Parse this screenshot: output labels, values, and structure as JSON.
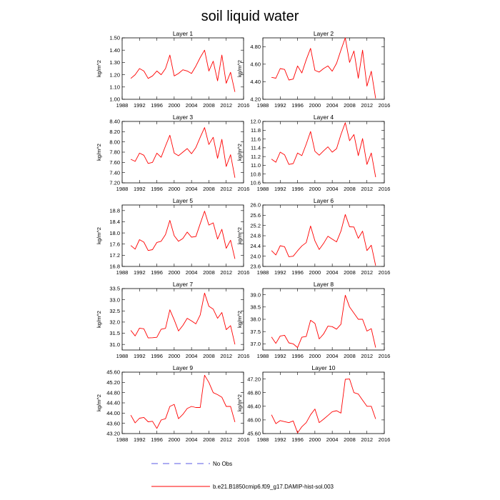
{
  "title": "soil liquid water",
  "chart_data": {
    "type": "line",
    "xlim": [
      1988,
      2016
    ],
    "xticks": [
      1988,
      1992,
      1996,
      2000,
      2004,
      2008,
      2012,
      2016
    ],
    "x": [
      1990,
      1991,
      1992,
      1993,
      1994,
      1995,
      1996,
      1997,
      1998,
      1999,
      2000,
      2001,
      2002,
      2003,
      2004,
      2005,
      2006,
      2007,
      2008,
      2009,
      2010,
      2011,
      2012,
      2013,
      2014
    ],
    "ylabel": "kg/m^2",
    "series_color": "#ff0000",
    "panels": [
      {
        "title": "Layer 1",
        "ylim": [
          1.0,
          1.5
        ],
        "yticks": [
          "1.00",
          "1.10",
          "1.20",
          "1.30",
          "1.40",
          "1.50"
        ],
        "values": [
          1.17,
          1.2,
          1.25,
          1.23,
          1.17,
          1.19,
          1.23,
          1.2,
          1.25,
          1.36,
          1.19,
          1.21,
          1.24,
          1.23,
          1.21,
          1.27,
          1.34,
          1.4,
          1.23,
          1.31,
          1.15,
          1.36,
          1.13,
          1.22,
          1.06
        ]
      },
      {
        "title": "Layer 2",
        "ylim": [
          4.2,
          4.9
        ],
        "yticks": [
          "4.20",
          "4.40",
          "4.60",
          "4.80"
        ],
        "values": [
          4.45,
          4.44,
          4.55,
          4.54,
          4.42,
          4.43,
          4.58,
          4.5,
          4.65,
          4.78,
          4.53,
          4.51,
          4.55,
          4.58,
          4.52,
          4.61,
          4.76,
          4.9,
          4.62,
          4.75,
          4.44,
          4.76,
          4.35,
          4.52,
          4.21
        ]
      },
      {
        "title": "Layer 3",
        "ylim": [
          7.2,
          8.4
        ],
        "yticks": [
          "7.20",
          "7.40",
          "7.60",
          "7.80",
          "8.00",
          "8.20",
          "8.40"
        ],
        "values": [
          7.66,
          7.62,
          7.78,
          7.74,
          7.58,
          7.6,
          7.78,
          7.7,
          7.92,
          8.13,
          7.78,
          7.73,
          7.8,
          7.87,
          7.77,
          7.89,
          8.09,
          8.28,
          7.95,
          8.09,
          7.68,
          8.05,
          7.52,
          7.75,
          7.3
        ]
      },
      {
        "title": "Layer 4",
        "ylim": [
          10.6,
          12.0
        ],
        "yticks": [
          "10.6",
          "10.8",
          "11.0",
          "11.2",
          "11.4",
          "11.6",
          "11.8",
          "12.0"
        ],
        "values": [
          11.14,
          11.07,
          11.3,
          11.24,
          11.02,
          11.04,
          11.28,
          11.22,
          11.48,
          11.77,
          11.32,
          11.23,
          11.33,
          11.42,
          11.3,
          11.38,
          11.7,
          11.97,
          11.56,
          11.7,
          11.22,
          11.61,
          11.02,
          11.28,
          10.73
        ]
      },
      {
        "title": "Layer 5",
        "ylim": [
          16.8,
          19.0
        ],
        "yticks": [
          "16.8",
          "17.2",
          "17.6",
          "18.0",
          "18.4",
          "18.8"
        ],
        "values": [
          17.55,
          17.42,
          17.76,
          17.67,
          17.37,
          17.4,
          17.66,
          17.7,
          17.94,
          18.45,
          17.9,
          17.7,
          17.8,
          18.03,
          17.85,
          17.87,
          18.33,
          18.78,
          18.28,
          18.36,
          17.78,
          18.13,
          17.45,
          17.74,
          17.07
        ]
      },
      {
        "title": "Layer 6",
        "ylim": [
          23.6,
          26.0
        ],
        "yticks": [
          "23.6",
          "24.0",
          "24.4",
          "24.8",
          "25.2",
          "25.6",
          "26.0"
        ],
        "values": [
          24.22,
          24.05,
          24.41,
          24.37,
          23.98,
          24.0,
          24.21,
          24.4,
          24.53,
          25.18,
          24.6,
          24.26,
          24.5,
          24.78,
          24.67,
          24.56,
          24.98,
          25.63,
          25.15,
          25.14,
          24.7,
          24.98,
          24.22,
          24.43,
          23.63
        ]
      },
      {
        "title": "Layer 7",
        "ylim": [
          30.75,
          33.5
        ],
        "yticks": [
          "31.0",
          "31.5",
          "32.0",
          "32.5",
          "33.0",
          "33.5"
        ],
        "values": [
          31.63,
          31.38,
          31.73,
          31.7,
          31.29,
          31.3,
          31.32,
          31.68,
          31.72,
          32.55,
          32.1,
          31.6,
          31.85,
          32.17,
          32.05,
          31.92,
          32.32,
          33.3,
          32.71,
          32.58,
          32.17,
          32.43,
          31.66,
          31.84,
          31.0
        ]
      },
      {
        "title": "Layer 8",
        "ylim": [
          36.75,
          39.25
        ],
        "yticks": [
          "37.0",
          "37.5",
          "38.0",
          "38.5",
          "39.0"
        ],
        "values": [
          37.28,
          37.02,
          37.32,
          37.35,
          37.04,
          37.0,
          36.85,
          37.27,
          37.3,
          37.96,
          37.83,
          37.2,
          37.4,
          37.72,
          37.7,
          37.6,
          37.8,
          38.98,
          38.5,
          38.25,
          38.0,
          38.0,
          37.52,
          37.62,
          36.85
        ]
      },
      {
        "title": "Layer 9",
        "ylim": [
          43.2,
          45.6
        ],
        "yticks": [
          "43.20",
          "43.60",
          "44.00",
          "44.40",
          "44.80",
          "45.20",
          "45.60"
        ],
        "values": [
          43.92,
          43.62,
          43.8,
          43.83,
          43.66,
          43.68,
          43.4,
          43.73,
          43.78,
          44.26,
          44.34,
          43.78,
          43.95,
          44.18,
          44.26,
          44.22,
          44.22,
          45.48,
          45.2,
          44.8,
          44.72,
          44.62,
          44.26,
          44.26,
          43.65
        ]
      },
      {
        "title": "Layer 10",
        "ylim": [
          45.6,
          47.4
        ],
        "yticks": [
          "45.60",
          "46.00",
          "46.40",
          "46.80",
          "47.20"
        ],
        "values": [
          46.15,
          45.89,
          45.98,
          45.95,
          45.92,
          45.97,
          45.62,
          45.8,
          45.92,
          46.15,
          46.32,
          45.92,
          46.02,
          46.13,
          46.24,
          46.27,
          46.2,
          47.19,
          47.2,
          46.8,
          46.76,
          46.58,
          46.4,
          46.4,
          46.03
        ]
      }
    ]
  },
  "legend": [
    {
      "label": "No Obs",
      "style": "dashed",
      "color": "#5a5ae6"
    },
    {
      "label": "b.e21.B1850cmip6.f09_g17.DAMIP-hist-sol.003",
      "style": "solid",
      "color": "#ff0000"
    }
  ]
}
